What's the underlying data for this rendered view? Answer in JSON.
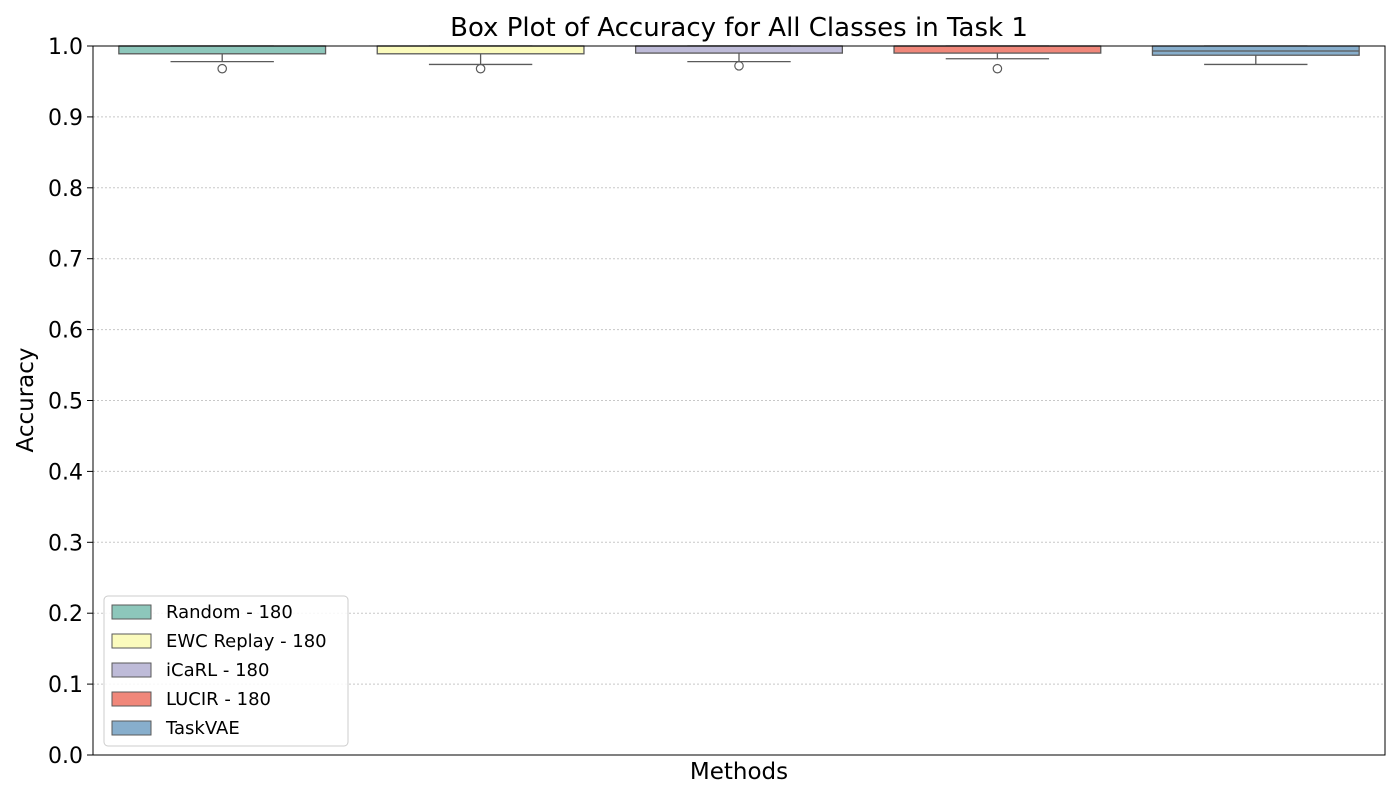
{
  "chart_data": {
    "type": "box",
    "title": "Box Plot of Accuracy for All Classes in Task 1",
    "xlabel": "Methods",
    "ylabel": "Accuracy",
    "ylim": [
      0.0,
      1.0
    ],
    "yticks": [
      "0.0",
      "0.1",
      "0.2",
      "0.3",
      "0.4",
      "0.5",
      "0.6",
      "0.7",
      "0.8",
      "0.9",
      "1.0"
    ],
    "grid": "horizontal dotted",
    "legend_position": "bottom-left",
    "series": [
      {
        "name": "Random - 180",
        "color": "#8dc7bb",
        "whisker_low": 0.978,
        "q1": 0.989,
        "median": 1.0,
        "q3": 1.0,
        "whisker_high": 1.0,
        "outliers": [
          0.968
        ]
      },
      {
        "name": "EWC Replay - 180",
        "color": "#fbfbbd",
        "whisker_low": 0.974,
        "q1": 0.989,
        "median": 1.0,
        "q3": 1.0,
        "whisker_high": 1.0,
        "outliers": [
          0.968
        ]
      },
      {
        "name": "iCaRL - 180",
        "color": "#bebbd8",
        "whisker_low": 0.978,
        "q1": 0.99,
        "median": 1.0,
        "q3": 1.0,
        "whisker_high": 1.0,
        "outliers": [
          0.972
        ]
      },
      {
        "name": "LUCIR - 180",
        "color": "#f0877a",
        "whisker_low": 0.982,
        "q1": 0.99,
        "median": 1.0,
        "q3": 1.0,
        "whisker_high": 1.0,
        "outliers": [
          0.968
        ]
      },
      {
        "name": "TaskVAE",
        "color": "#87aecc",
        "whisker_low": 0.974,
        "q1": 0.987,
        "median": 0.993,
        "q3": 1.0,
        "whisker_high": 1.0,
        "outliers": []
      }
    ]
  }
}
